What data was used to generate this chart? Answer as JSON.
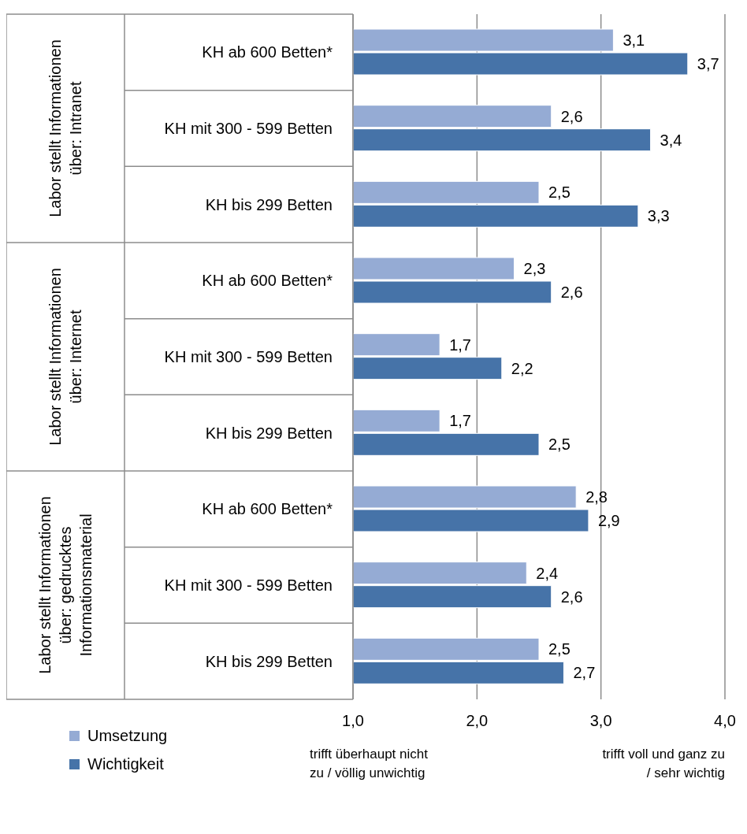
{
  "chart_data": {
    "type": "bar",
    "orientation": "horizontal",
    "categories": [
      "KH ab 600 Betten*",
      "KH mit 300 - 599 Betten",
      "KH bis 299 Betten",
      "KH ab 600 Betten*",
      "KH mit 300 - 599 Betten",
      "KH bis 299 Betten",
      "KH ab 600 Betten*",
      "KH mit 300 - 599 Betten",
      "KH bis 299 Betten"
    ],
    "series": [
      {
        "name": "Umsetzung",
        "color": "#95abd4",
        "values": [
          3.1,
          2.6,
          2.5,
          2.3,
          1.7,
          1.7,
          2.8,
          2.4,
          2.5
        ],
        "value_labels": [
          "3,1",
          "2,6",
          "2,5",
          "2,3",
          "1,7",
          "1,7",
          "2,8",
          "2,4",
          "2,5"
        ]
      },
      {
        "name": "Wichtigkeit",
        "color": "#4673a8",
        "values": [
          3.7,
          3.4,
          3.3,
          2.6,
          2.2,
          2.5,
          2.9,
          2.6,
          2.7
        ],
        "value_labels": [
          "3,7",
          "3,4",
          "3,3",
          "2,6",
          "2,2",
          "2,5",
          "2,9",
          "2,6",
          "2,7"
        ]
      }
    ],
    "xlim": [
      1,
      4
    ],
    "xticks": [
      {
        "value": 1,
        "label": "1,0"
      },
      {
        "value": 2,
        "label": "2,0"
      },
      {
        "value": 3,
        "label": "3,0"
      },
      {
        "value": 4,
        "label": "4,0"
      }
    ],
    "grid": "x",
    "legend": "bottom left",
    "annotations": [
      "Labor stellt Informationen\nüber: Intranet",
      "Labor stellt Informationen\nüber: Internet",
      "Labor stellt Informationen\nüber: gedrucktes\nInformationsmaterial",
      "trifft überhaupt nicht\nzu / völlig unwichtig",
      "trifft voll und ganz zu\n/ sehr wichtig"
    ]
  }
}
